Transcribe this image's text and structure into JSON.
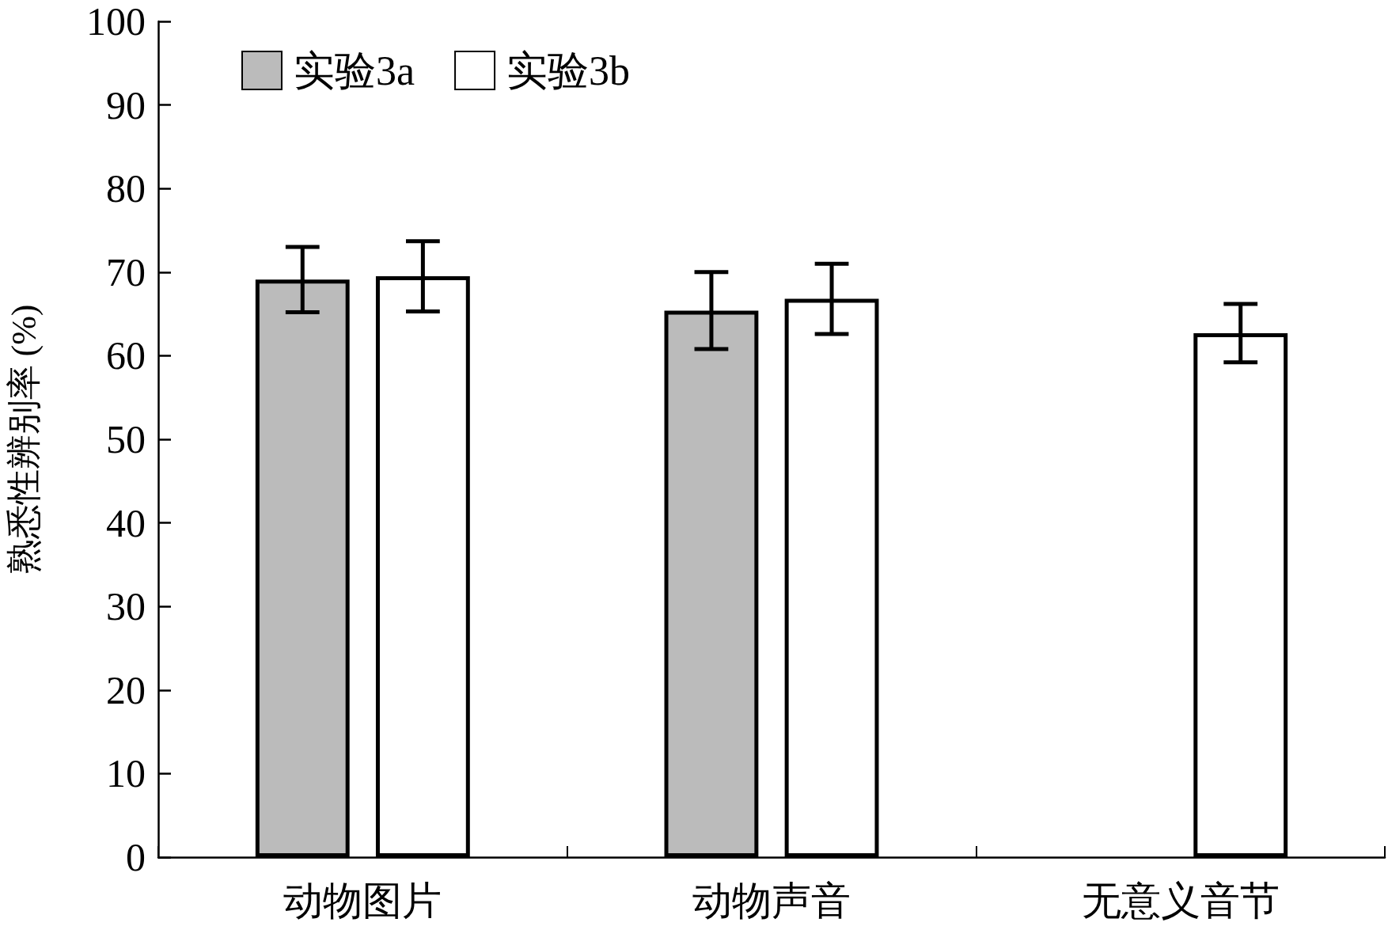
{
  "chart_data": {
    "type": "bar",
    "ylabel": "熟悉性辨别率 (%)",
    "categories": [
      "动物图片",
      "动物声音",
      "无意义音节"
    ],
    "series": [
      {
        "name": "实验3a",
        "color": "#bbbbbb",
        "values": [
          69.1,
          65.4,
          null
        ],
        "errors": [
          3.9,
          4.6,
          null
        ]
      },
      {
        "name": "实验3b",
        "color": "#ffffff",
        "values": [
          69.5,
          66.8,
          62.7
        ],
        "errors": [
          4.2,
          4.2,
          3.5
        ]
      }
    ],
    "ylim": [
      0,
      100
    ],
    "yticks": [
      0,
      10,
      20,
      30,
      40,
      50,
      60,
      70,
      80,
      90,
      100
    ],
    "legend": "top left"
  }
}
